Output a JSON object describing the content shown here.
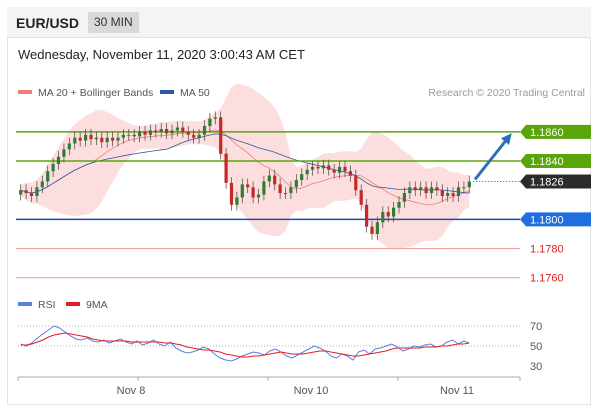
{
  "header": {
    "pair": "EUR/USD",
    "timeframe": "30 MIN"
  },
  "datetime": "Wednesday, November 11, 2020 3:00:43 AM CET",
  "legend": {
    "bollinger": "MA 20 + Bollinger Bands",
    "ma50": "MA 50",
    "credit": "Research © 2020 Trading Central",
    "rsi": "RSI",
    "ma9": "9MA"
  },
  "colors": {
    "candle_up": "#2e7d32",
    "candle_down": "#c62828",
    "bollinger_band": "#fbd3d3",
    "bollinger_mid": "#f07c7c",
    "ma50": "#2c5aa0",
    "resistance": "#5aa50a",
    "support": "#1f4fa5",
    "support_weak": "#f3a3a3",
    "arrow": "#2f6fb5",
    "rsi": "#5b7fe0",
    "rsi_ma": "#e02020"
  },
  "chart_data": [
    {
      "type": "candlestick",
      "title": "EUR/USD 30 MIN",
      "x_ticks": [
        "Nov 8",
        "Nov 10",
        "Nov 11"
      ],
      "ylim": [
        1.1755,
        1.1875
      ],
      "close_series": [
        1.182,
        1.1818,
        1.1816,
        1.1822,
        1.1826,
        1.1833,
        1.1838,
        1.1843,
        1.1848,
        1.1852,
        1.1856,
        1.1854,
        1.1858,
        1.1855,
        1.1856,
        1.1853,
        1.1856,
        1.1854,
        1.1856,
        1.1858,
        1.1858,
        1.1857,
        1.186,
        1.1858,
        1.1861,
        1.186,
        1.1862,
        1.1859,
        1.1861,
        1.1863,
        1.186,
        1.1858,
        1.1856,
        1.1858,
        1.1864,
        1.1869,
        1.187,
        1.1845,
        1.1825,
        1.181,
        1.1815,
        1.1824,
        1.1822,
        1.1815,
        1.1817,
        1.1826,
        1.183,
        1.1824,
        1.1818,
        1.1818,
        1.1822,
        1.1827,
        1.1831,
        1.1834,
        1.1836,
        1.1835,
        1.1837,
        1.1834,
        1.1832,
        1.1836,
        1.1833,
        1.183,
        1.182,
        1.181,
        1.1795,
        1.179,
        1.1798,
        1.1805,
        1.1802,
        1.1808,
        1.1812,
        1.1818,
        1.1822,
        1.182,
        1.1822,
        1.1818,
        1.1822,
        1.182,
        1.1816,
        1.1818,
        1.1816,
        1.1822,
        1.1822,
        1.1826
      ],
      "levels": [
        {
          "value": 1.186,
          "label": "1.1860",
          "kind": "resistance"
        },
        {
          "value": 1.184,
          "label": "1.1840",
          "kind": "resistance"
        },
        {
          "value": 1.1826,
          "label": "1.1826",
          "kind": "last"
        },
        {
          "value": 1.18,
          "label": "1.1800",
          "kind": "pivot"
        },
        {
          "value": 1.178,
          "label": "1.1780",
          "kind": "support"
        },
        {
          "value": 1.176,
          "label": "1.1760",
          "kind": "support"
        }
      ],
      "target": {
        "from": 1.1826,
        "to": 1.186
      }
    },
    {
      "type": "line",
      "series": [
        {
          "name": "RSI",
          "values": [
            52,
            50,
            53,
            58,
            62,
            66,
            70,
            68,
            64,
            60,
            57,
            56,
            58,
            55,
            54,
            56,
            53,
            55,
            57,
            54,
            52,
            55,
            51,
            53,
            56,
            52,
            50,
            54,
            48,
            45,
            43,
            44,
            46,
            49,
            47,
            42,
            38,
            36,
            35,
            37,
            40,
            42,
            44,
            43,
            41,
            45,
            47,
            44,
            40,
            38,
            41,
            44,
            47,
            50,
            48,
            45,
            40,
            38,
            42,
            40,
            36,
            44,
            46,
            42,
            47,
            48,
            50,
            52,
            49,
            45,
            47,
            50,
            49,
            51,
            52,
            49,
            50,
            54,
            56,
            52,
            55,
            53
          ]
        },
        {
          "name": "9MA",
          "values": [
            51,
            51,
            52,
            54,
            56,
            59,
            61,
            62,
            63,
            62,
            61,
            60,
            59,
            57,
            56,
            55,
            55,
            55,
            55,
            55,
            54,
            54,
            54,
            54,
            54,
            54,
            53,
            53,
            52,
            51,
            49,
            48,
            47,
            46,
            46,
            45,
            44,
            42,
            41,
            40,
            39,
            39,
            40,
            40,
            41,
            42,
            43,
            44,
            43,
            42,
            42,
            42,
            43,
            44,
            45,
            45,
            44,
            43,
            42,
            41,
            40,
            40,
            41,
            42,
            43,
            44,
            45,
            47,
            48,
            48,
            48,
            48,
            48,
            49,
            49,
            49,
            50,
            50,
            51,
            52,
            52,
            53
          ]
        }
      ],
      "y_ticks": [
        70,
        50,
        30
      ],
      "ylim": [
        24,
        84
      ]
    }
  ]
}
